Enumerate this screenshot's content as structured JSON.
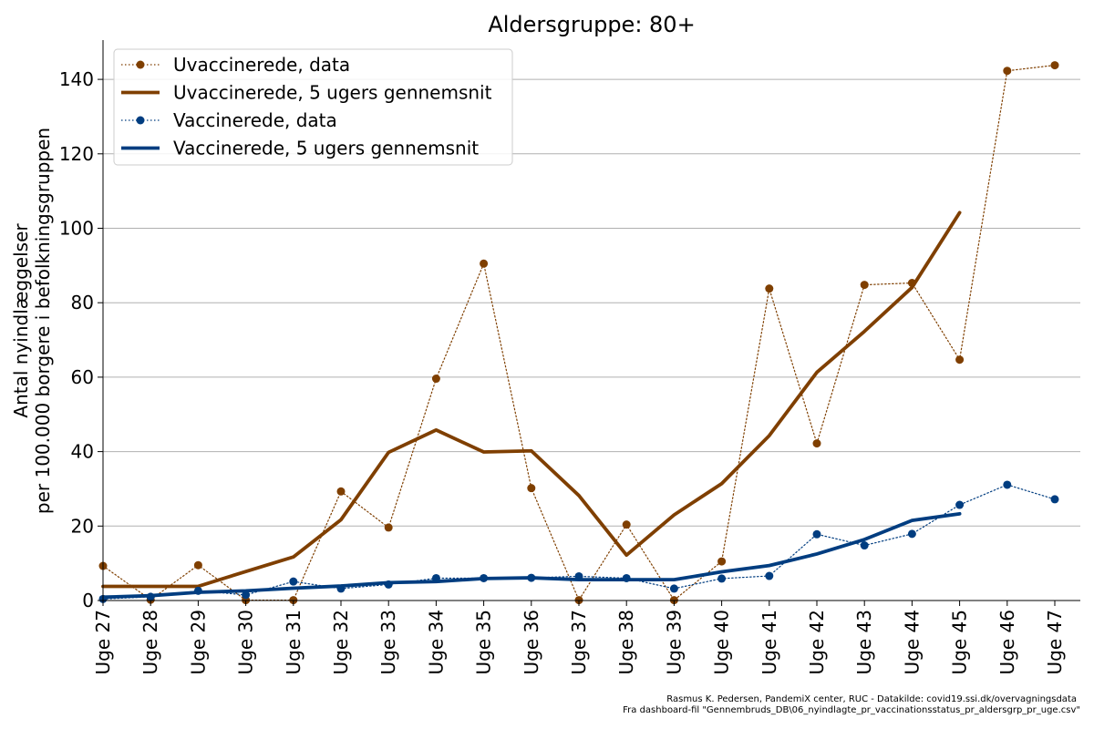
{
  "chart_data": {
    "type": "line",
    "title": "Aldersgruppe: 80+",
    "ylabel_line1": "Antal nyindlæggelser",
    "ylabel_line2": "per 100.000 borgere i befolkningsgruppen",
    "xlabel": "",
    "categories": [
      "Uge 27",
      "Uge 28",
      "Uge 29",
      "Uge 30",
      "Uge 31",
      "Uge 32",
      "Uge 33",
      "Uge 34",
      "Uge 35",
      "Uge 36",
      "Uge 37",
      "Uge 38",
      "Uge 39",
      "Uge 40",
      "Uge 41",
      "Uge 42",
      "Uge 43",
      "Uge 44",
      "Uge 45",
      "Uge 46",
      "Uge 47"
    ],
    "ylim": [
      0,
      151
    ],
    "yticks": [
      0,
      20,
      40,
      60,
      80,
      100,
      120,
      140
    ],
    "grid": "horizontal",
    "legend_position": "top-left",
    "series": [
      {
        "name": "Uvaccinerede, data",
        "style": "dotted-markers",
        "color": "#7f3f00",
        "values": [
          9.3,
          0.2,
          9.5,
          0.1,
          0.1,
          29.3,
          19.6,
          59.6,
          90.5,
          30.2,
          0.1,
          20.4,
          0.1,
          10.5,
          83.8,
          42.2,
          84.8,
          85.3,
          64.7,
          142.3,
          143.8
        ]
      },
      {
        "name": "Uvaccinerede, 5 ugers gennemsnit",
        "style": "solid",
        "color": "#7f3f00",
        "values": [
          3.8,
          3.8,
          3.8,
          7.8,
          11.7,
          21.7,
          39.8,
          45.8,
          39.9,
          40.2,
          28.2,
          12.2,
          23.0,
          31.4,
          44.3,
          61.3,
          72.3,
          84.1,
          104.2,
          null,
          null
        ]
      },
      {
        "name": "Vaccinerede, data",
        "style": "dotted-markers",
        "color": "#003d80",
        "values": [
          0.4,
          1.0,
          2.6,
          1.5,
          5.1,
          3.2,
          4.3,
          6.0,
          6.0,
          6.1,
          6.5,
          6.0,
          3.2,
          5.9,
          6.6,
          17.8,
          14.8,
          17.9,
          25.7,
          31.1,
          27.2
        ]
      },
      {
        "name": "Vaccinerede, 5 ugers gennemsnit",
        "style": "solid",
        "color": "#003d80",
        "values": [
          0.9,
          1.3,
          2.2,
          2.6,
          3.3,
          3.9,
          4.8,
          5.1,
          5.9,
          6.1,
          5.6,
          5.6,
          5.6,
          7.7,
          9.4,
          12.5,
          16.4,
          21.5,
          23.3,
          null,
          null
        ]
      }
    ]
  },
  "credit_line1": "Rasmus K. Pedersen, PandemiX center, RUC - Datakilde: covid19.ssi.dk/overvagningsdata",
  "credit_line2": "Fra dashboard-fil \"Gennembruds_DB\\06_nyindlagte_pr_vaccinationsstatus_pr_aldersgrp_pr_uge.csv\""
}
